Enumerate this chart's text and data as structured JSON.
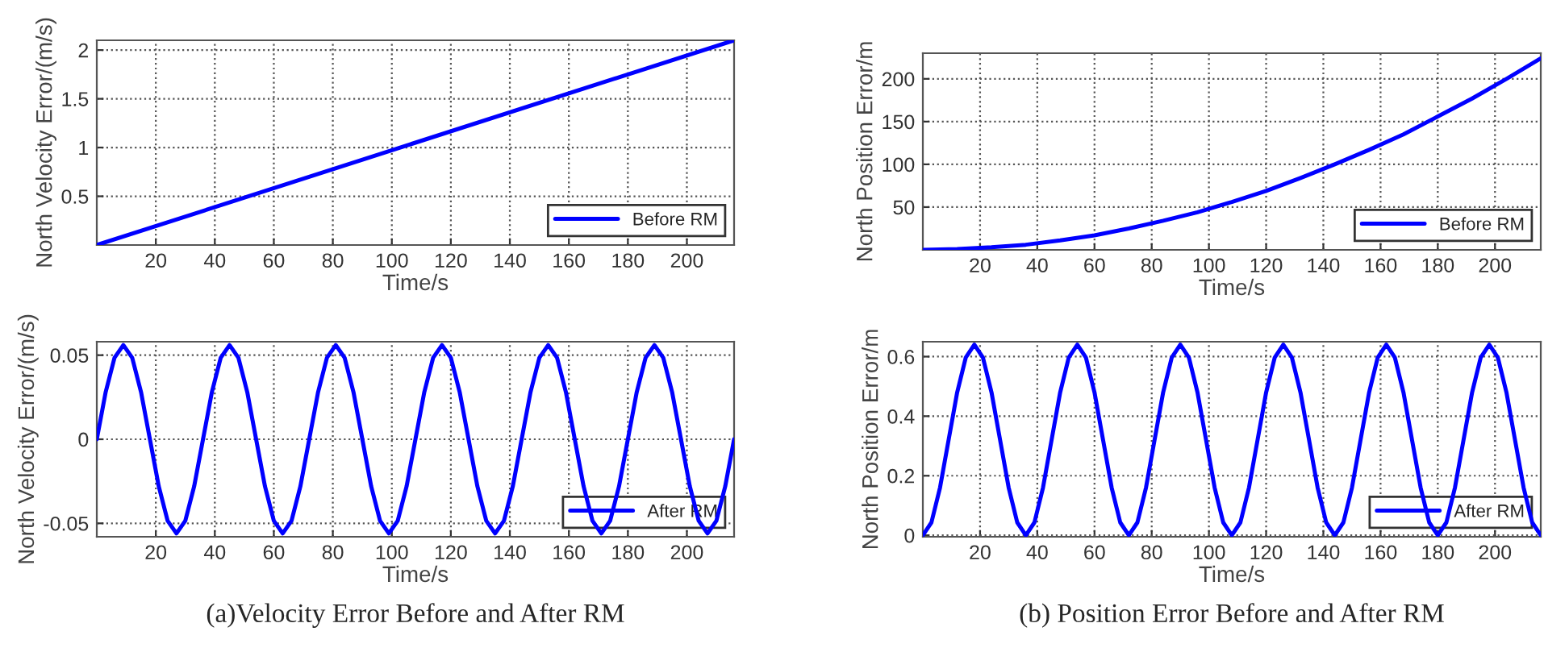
{
  "chart_data": [
    {
      "type": "line",
      "xlabel": "Time/s",
      "ylabel": "North Velocity Error/(m/s)",
      "xlim": [
        0,
        216
      ],
      "ylim": [
        0,
        2.1
      ],
      "xticks": [
        20,
        40,
        60,
        80,
        100,
        120,
        140,
        160,
        180,
        200
      ],
      "yticks": [
        0.5,
        1,
        1.5,
        2
      ],
      "grid": true,
      "legend": "bottom right",
      "series": [
        {
          "name": "Before RM",
          "color": "#0000ff",
          "x": [
            0,
            216
          ],
          "values": [
            0,
            2.1
          ]
        }
      ]
    },
    {
      "type": "line",
      "xlabel": "Time/s",
      "ylabel": "North Velocity Error/(m/s)",
      "xlim": [
        0,
        216
      ],
      "ylim": [
        -0.058,
        0.058
      ],
      "xticks": [
        20,
        40,
        60,
        80,
        100,
        120,
        140,
        160,
        180,
        200
      ],
      "yticks": [
        -0.05,
        0,
        0.05
      ],
      "grid": true,
      "legend": "bottom right",
      "annotations": [
        "(a)Velocity Error Before and After RM"
      ],
      "series": [
        {
          "name": "After RM",
          "color": "#0000ff",
          "x": [
            0,
            3,
            6,
            9,
            12,
            15,
            18,
            21,
            24,
            27,
            30,
            33,
            36,
            39,
            42,
            45,
            48,
            51,
            54,
            57,
            60,
            63,
            66,
            69,
            72,
            75,
            78,
            81,
            84,
            87,
            90,
            93,
            96,
            99,
            102,
            105,
            108,
            111,
            114,
            117,
            120,
            123,
            126,
            129,
            132,
            135,
            138,
            141,
            144,
            147,
            150,
            153,
            156,
            159,
            162,
            165,
            168,
            171,
            174,
            177,
            180,
            183,
            186,
            189,
            192,
            195,
            198,
            201,
            204,
            207,
            210,
            213,
            216
          ],
          "values": [
            0,
            0.028,
            0.0485,
            0.056,
            0.0485,
            0.028,
            0,
            -0.028,
            -0.0485,
            -0.056,
            -0.0485,
            -0.028,
            0,
            0.028,
            0.0485,
            0.056,
            0.0485,
            0.028,
            0,
            -0.028,
            -0.0485,
            -0.056,
            -0.0485,
            -0.028,
            0,
            0.028,
            0.0485,
            0.056,
            0.0485,
            0.028,
            0,
            -0.028,
            -0.0485,
            -0.056,
            -0.0485,
            -0.028,
            0,
            0.028,
            0.0485,
            0.056,
            0.0485,
            0.028,
            0,
            -0.028,
            -0.0485,
            -0.056,
            -0.0485,
            -0.028,
            0,
            0.028,
            0.0485,
            0.056,
            0.0485,
            0.028,
            0,
            -0.028,
            -0.0485,
            -0.056,
            -0.0485,
            -0.028,
            0,
            0.028,
            0.0485,
            0.056,
            0.0485,
            0.028,
            0,
            -0.028,
            -0.0485,
            -0.056,
            -0.0485,
            -0.028,
            0
          ]
        }
      ]
    },
    {
      "type": "line",
      "xlabel": "Time/s",
      "ylabel": "North Position Error/m",
      "xlim": [
        0,
        216
      ],
      "ylim": [
        0,
        230
      ],
      "xticks": [
        20,
        40,
        60,
        80,
        100,
        120,
        140,
        160,
        180,
        200
      ],
      "yticks": [
        50,
        100,
        150,
        200
      ],
      "grid": true,
      "legend": "bottom right",
      "series": [
        {
          "name": "Before RM",
          "color": "#0000ff",
          "x": [
            0,
            12,
            24,
            36,
            48,
            60,
            72,
            84,
            96,
            108,
            120,
            132,
            144,
            156,
            168,
            180,
            192,
            204,
            216
          ],
          "values": [
            0,
            1,
            3,
            6,
            11,
            17,
            25,
            34,
            44,
            56,
            69,
            84,
            100,
            117,
            135,
            156,
            177,
            200,
            224
          ]
        }
      ]
    },
    {
      "type": "line",
      "xlabel": "Time/s",
      "ylabel": "North Position Error/m",
      "xlim": [
        0,
        216
      ],
      "ylim": [
        -0.005,
        0.65
      ],
      "xticks": [
        20,
        40,
        60,
        80,
        100,
        120,
        140,
        160,
        180,
        200
      ],
      "yticks": [
        0,
        0.2,
        0.4,
        0.6
      ],
      "grid": true,
      "legend": "bottom right",
      "annotations": [
        "(b) Position Error Before and After RM"
      ],
      "series": [
        {
          "name": "After RM",
          "color": "#0000ff",
          "x": [
            0,
            3,
            6,
            9,
            12,
            15,
            18,
            21,
            24,
            27,
            30,
            33,
            36,
            39,
            42,
            45,
            48,
            51,
            54,
            57,
            60,
            63,
            66,
            69,
            72,
            75,
            78,
            81,
            84,
            87,
            90,
            93,
            96,
            99,
            102,
            105,
            108,
            111,
            114,
            117,
            120,
            123,
            126,
            129,
            132,
            135,
            138,
            141,
            144,
            147,
            150,
            153,
            156,
            159,
            162,
            165,
            168,
            171,
            174,
            177,
            180,
            183,
            186,
            189,
            192,
            195,
            198,
            201,
            204,
            207,
            210,
            213,
            216
          ],
          "values": [
            0,
            0.043,
            0.16,
            0.32,
            0.48,
            0.597,
            0.64,
            0.597,
            0.48,
            0.32,
            0.16,
            0.043,
            0,
            0.043,
            0.16,
            0.32,
            0.48,
            0.597,
            0.64,
            0.597,
            0.48,
            0.32,
            0.16,
            0.043,
            0,
            0.043,
            0.16,
            0.32,
            0.48,
            0.597,
            0.64,
            0.597,
            0.48,
            0.32,
            0.16,
            0.043,
            0,
            0.043,
            0.16,
            0.32,
            0.48,
            0.597,
            0.64,
            0.597,
            0.48,
            0.32,
            0.16,
            0.043,
            0,
            0.043,
            0.16,
            0.32,
            0.48,
            0.597,
            0.64,
            0.597,
            0.48,
            0.32,
            0.16,
            0.043,
            0,
            0.043,
            0.16,
            0.32,
            0.48,
            0.597,
            0.64,
            0.597,
            0.48,
            0.32,
            0.16,
            0.043,
            0
          ]
        }
      ]
    }
  ]
}
